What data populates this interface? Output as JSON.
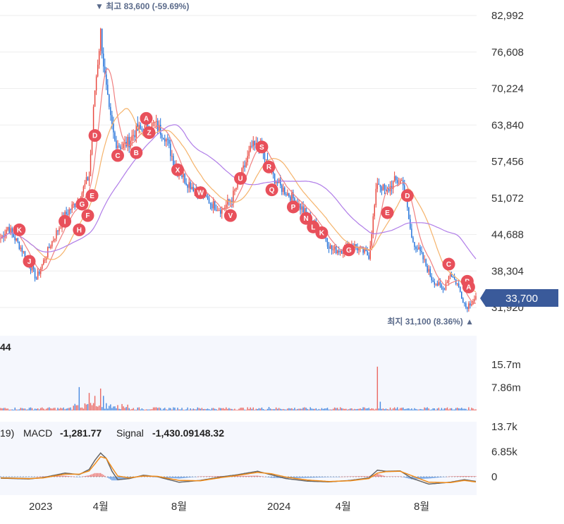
{
  "chart_data": {
    "type": "candlestick",
    "colors": {
      "up": "#e8453c",
      "down": "#1e6fd9",
      "ma_short": "#f08080",
      "ma_mid": "#f5b36b",
      "ma_long": "#b07de8",
      "macd": "#666666",
      "signal": "#f08c1a",
      "marker": "#e8505b",
      "price_tag": "#3a5a9a",
      "grid": "#eeeeee",
      "panel_bg": "#f5f7fd"
    },
    "price_axis": {
      "ticks": [
        "82,992",
        "76,608",
        "70,224",
        "63,840",
        "57,456",
        "51,072",
        "44,688",
        "38,304",
        "31,920"
      ],
      "ylim": [
        29000,
        85000
      ]
    },
    "current_price": "33,700",
    "high_annotation": "▼ 최고 83,600 (-59.69%)",
    "low_annotation": "최지 31,100 (8.36%) ▲",
    "x_ticks": [
      "2023",
      "4월",
      "8월",
      "2024",
      "4월",
      "8월"
    ],
    "price_keypoints": [
      [
        0,
        44000
      ],
      [
        5,
        46000
      ],
      [
        15,
        42000
      ],
      [
        25,
        37000
      ],
      [
        35,
        43000
      ],
      [
        45,
        48000
      ],
      [
        55,
        51000
      ],
      [
        62,
        55000
      ],
      [
        66,
        70000
      ],
      [
        70,
        80000
      ],
      [
        73,
        72000
      ],
      [
        76,
        66000
      ],
      [
        80,
        61000
      ],
      [
        85,
        60000
      ],
      [
        90,
        61000
      ],
      [
        95,
        63000
      ],
      [
        100,
        63000
      ],
      [
        108,
        64000
      ],
      [
        115,
        62000
      ],
      [
        122,
        57000
      ],
      [
        130,
        54000
      ],
      [
        140,
        52000
      ],
      [
        148,
        50000
      ],
      [
        155,
        49000
      ],
      [
        162,
        51000
      ],
      [
        170,
        56000
      ],
      [
        176,
        60000
      ],
      [
        182,
        60000
      ],
      [
        188,
        56000
      ],
      [
        196,
        53000
      ],
      [
        205,
        51000
      ],
      [
        215,
        48000
      ],
      [
        225,
        45000
      ],
      [
        232,
        42000
      ],
      [
        240,
        42000
      ],
      [
        246,
        43000
      ],
      [
        252,
        42000
      ],
      [
        258,
        41000
      ],
      [
        264,
        54000
      ],
      [
        270,
        52000
      ],
      [
        276,
        54000
      ],
      [
        282,
        54000
      ],
      [
        288,
        44000
      ],
      [
        295,
        41000
      ],
      [
        302,
        37000
      ],
      [
        310,
        35000
      ],
      [
        315,
        38000
      ],
      [
        320,
        36000
      ],
      [
        326,
        32000
      ],
      [
        333,
        33700
      ]
    ],
    "markers": [
      {
        "label": "K",
        "x": 13,
        "price": 45500
      },
      {
        "label": "J",
        "x": 20,
        "price": 40000
      },
      {
        "label": "I",
        "x": 45,
        "price": 47000
      },
      {
        "label": "H",
        "x": 55,
        "price": 45500
      },
      {
        "label": "F",
        "x": 61,
        "price": 48000
      },
      {
        "label": "G",
        "x": 57,
        "price": 50000
      },
      {
        "label": "E",
        "x": 64,
        "price": 51500
      },
      {
        "label": "D",
        "x": 66,
        "price": 62000
      },
      {
        "label": "C",
        "x": 82,
        "price": 58500
      },
      {
        "label": "B",
        "x": 95,
        "price": 59000
      },
      {
        "label": "A",
        "x": 102,
        "price": 65000
      },
      {
        "label": "Z",
        "x": 104,
        "price": 62500
      },
      {
        "label": "X",
        "x": 124,
        "price": 56000
      },
      {
        "label": "W",
        "x": 140,
        "price": 52000
      },
      {
        "label": "V",
        "x": 161,
        "price": 48000
      },
      {
        "label": "U",
        "x": 168,
        "price": 54500
      },
      {
        "label": "S",
        "x": 183,
        "price": 60000
      },
      {
        "label": "R",
        "x": 188,
        "price": 56500
      },
      {
        "label": "Q",
        "x": 190,
        "price": 52500
      },
      {
        "label": "P",
        "x": 205,
        "price": 49500
      },
      {
        "label": "N",
        "x": 214,
        "price": 47500
      },
      {
        "label": "L",
        "x": 219,
        "price": 46000
      },
      {
        "label": "K",
        "x": 225,
        "price": 45000
      },
      {
        "label": "G",
        "x": 244,
        "price": 42000
      },
      {
        "label": "E",
        "x": 271,
        "price": 48500
      },
      {
        "label": "D",
        "x": 285,
        "price": 51500
      },
      {
        "label": "C",
        "x": 314,
        "price": 39500
      },
      {
        "label": "B",
        "x": 327,
        "price": 36500
      },
      {
        "label": "A",
        "x": 328,
        "price": 35500
      }
    ],
    "volume_panel": {
      "label": "44",
      "ticks": [
        "15.7m",
        "7.86m"
      ],
      "spikes": [
        [
          55,
          8
        ],
        [
          62,
          6
        ],
        [
          66,
          5
        ],
        [
          70,
          7.5
        ],
        [
          72,
          5
        ],
        [
          188,
          1.2
        ],
        [
          264,
          15
        ],
        [
          266,
          3
        ]
      ]
    },
    "macd_panel": {
      "label_prefix": "19)",
      "macd_label": "MACD",
      "macd_value": "-1,281.77",
      "signal_label": "Signal",
      "signal_value": "-1,430.09148.32",
      "ticks": [
        "13.7k",
        "6.85k",
        "0"
      ],
      "ylim": [
        -3000,
        13700
      ],
      "macd_keypoints": [
        [
          0,
          -400
        ],
        [
          20,
          -600
        ],
        [
          30,
          -200
        ],
        [
          45,
          1000
        ],
        [
          55,
          600
        ],
        [
          62,
          2000
        ],
        [
          66,
          4500
        ],
        [
          70,
          6500
        ],
        [
          74,
          5000
        ],
        [
          78,
          1500
        ],
        [
          82,
          -800
        ],
        [
          90,
          -500
        ],
        [
          100,
          400
        ],
        [
          110,
          0
        ],
        [
          125,
          -1500
        ],
        [
          140,
          -1000
        ],
        [
          155,
          0
        ],
        [
          165,
          500
        ],
        [
          180,
          1500
        ],
        [
          190,
          500
        ],
        [
          200,
          -500
        ],
        [
          215,
          -1200
        ],
        [
          230,
          -1400
        ],
        [
          245,
          -1000
        ],
        [
          258,
          -300
        ],
        [
          264,
          1800
        ],
        [
          270,
          1500
        ],
        [
          280,
          1600
        ],
        [
          288,
          -400
        ],
        [
          300,
          -2000
        ],
        [
          315,
          -1500
        ],
        [
          325,
          -800
        ],
        [
          333,
          -1280
        ]
      ],
      "signal_keypoints": [
        [
          0,
          -300
        ],
        [
          20,
          -500
        ],
        [
          30,
          -300
        ],
        [
          45,
          700
        ],
        [
          55,
          700
        ],
        [
          62,
          1600
        ],
        [
          66,
          3500
        ],
        [
          70,
          5500
        ],
        [
          74,
          5000
        ],
        [
          78,
          2500
        ],
        [
          82,
          200
        ],
        [
          90,
          -300
        ],
        [
          100,
          200
        ],
        [
          110,
          100
        ],
        [
          125,
          -1000
        ],
        [
          140,
          -1100
        ],
        [
          155,
          -200
        ],
        [
          165,
          300
        ],
        [
          180,
          1200
        ],
        [
          190,
          800
        ],
        [
          200,
          -100
        ],
        [
          215,
          -900
        ],
        [
          230,
          -1300
        ],
        [
          245,
          -1100
        ],
        [
          258,
          -500
        ],
        [
          264,
          1000
        ],
        [
          270,
          1400
        ],
        [
          280,
          1500
        ],
        [
          288,
          300
        ],
        [
          300,
          -1500
        ],
        [
          315,
          -1600
        ],
        [
          325,
          -1000
        ],
        [
          333,
          -1430
        ]
      ]
    }
  }
}
